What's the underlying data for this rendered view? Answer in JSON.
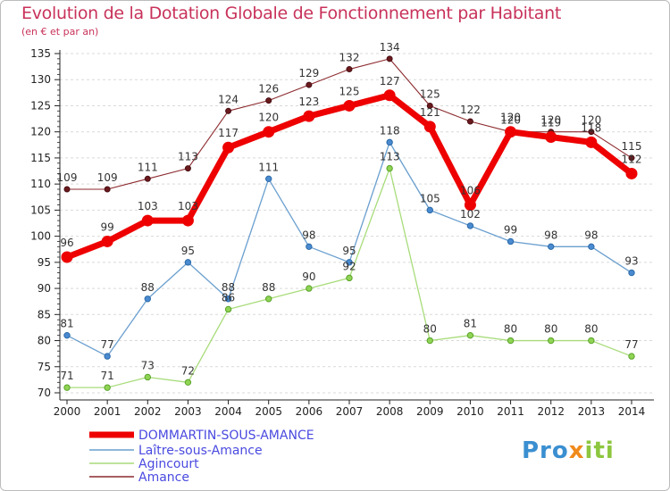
{
  "header": {
    "title": "Evolution de la Dotation Globale de Fonctionnement par Habitant",
    "subtitle": "(en € et par an)"
  },
  "logo": {
    "part1": "Pro",
    "part2": "x",
    "part3": "iti"
  },
  "colors": {
    "title": "#c8325a",
    "dommartin": "#ee0000",
    "laitre": "#6a9fcf",
    "agincourt": "#a8dc7a",
    "amance": "#8c2a2e",
    "grid": "#d9d9d9",
    "axis": "#222222"
  },
  "chart_data": {
    "type": "line",
    "title": "Evolution de la Dotation Globale de Fonctionnement par Habitant",
    "subtitle": "(en € et par an)",
    "x": [
      2000,
      2001,
      2002,
      2003,
      2004,
      2005,
      2006,
      2007,
      2008,
      2009,
      2010,
      2011,
      2012,
      2013,
      2014
    ],
    "xlabels": [
      "2000",
      "2001",
      "2002",
      "2003",
      "2004",
      "2005",
      "2006",
      "2007",
      "2008",
      "2009",
      "2010",
      "2011",
      "2012",
      "2013",
      "2014"
    ],
    "ylim": [
      70,
      135
    ],
    "yticks": [
      70,
      75,
      80,
      85,
      90,
      95,
      100,
      105,
      110,
      115,
      120,
      125,
      130,
      135
    ],
    "ytick_labels": [
      "70",
      "75",
      "80",
      "85",
      "90",
      "95",
      "100",
      "105",
      "110",
      "115",
      "120",
      "125",
      "130",
      "135"
    ],
    "grid": "horizontal dashed",
    "legend_position": "bottom-left",
    "series": [
      {
        "name": "DOMMARTIN-SOUS-AMANCE",
        "color": "#ee0000",
        "values": [
          96,
          99,
          103,
          103,
          117,
          120,
          123,
          125,
          127,
          121,
          106,
          120,
          119,
          118,
          112
        ],
        "labels": [
          "96",
          "99",
          "103",
          "103",
          "117",
          "120",
          "123",
          "125",
          "127",
          "121",
          "106",
          "120",
          "119",
          "118",
          "112"
        ]
      },
      {
        "name": "Laître-sous-Amance",
        "color": "#6a9fcf",
        "values": [
          81,
          77,
          88,
          95,
          88,
          111,
          98,
          95,
          118,
          105,
          102,
          99,
          98,
          98,
          93
        ],
        "labels": [
          "81",
          "77",
          "88",
          "95",
          "88",
          "111",
          "98",
          "95",
          "118",
          "105",
          "102",
          "99",
          "98",
          "98",
          "93"
        ]
      },
      {
        "name": "Agincourt",
        "color": "#a8dc7a",
        "values": [
          71,
          71,
          73,
          72,
          86,
          88,
          90,
          92,
          113,
          80,
          81,
          80,
          80,
          80,
          77
        ],
        "labels": [
          "71",
          "71",
          "73",
          "72",
          "86",
          "88",
          "90",
          "92",
          "113",
          "80",
          "81",
          "80",
          "80",
          "80",
          "77"
        ]
      },
      {
        "name": "Amance",
        "color": "#8c2a2e",
        "values": [
          109,
          109,
          111,
          113,
          124,
          126,
          129,
          132,
          134,
          125,
          122,
          120,
          120,
          120,
          115
        ],
        "labels": [
          "109",
          "109",
          "111",
          "113",
          "124",
          "126",
          "129",
          "132",
          "134",
          "125",
          "122",
          "120",
          "120",
          "120",
          "115"
        ]
      }
    ]
  }
}
